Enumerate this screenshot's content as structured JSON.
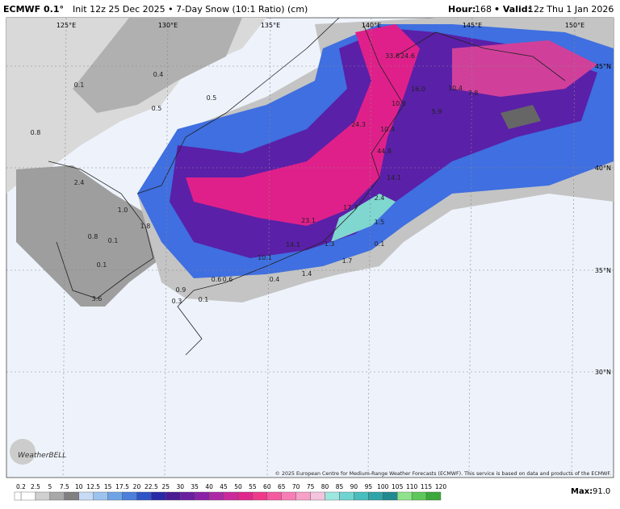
{
  "header": {
    "model": "ECMWF 0.1°",
    "init": "Init 12z 25 Dec 2025 • 7-Day Snow (10:1 Ratio) (cm)",
    "hour_label": "Hour:",
    "hour": "168",
    "valid_label": "• Valid:",
    "valid": "12z Thu 1 Jan 2026"
  },
  "map": {
    "lon_labels": [
      "125°E",
      "130°E",
      "135°E",
      "140°E",
      "145°E",
      "150°E"
    ],
    "lat_labels": [
      "45°N",
      "40°N",
      "35°N",
      "30°N"
    ],
    "value_labels": [
      "0.4",
      "0.1",
      "0.5",
      "0.5",
      "0.8",
      "33.8",
      "24.6",
      "16.0",
      "10.4",
      "7.8",
      "10.3",
      "5.9",
      "24.3",
      "10.4",
      "44.8",
      "14.1",
      "2.4",
      "2.4",
      "1.0",
      "17.7",
      "1.8",
      "23.1",
      "0.8",
      "0.1",
      "1.5",
      "0.1",
      "14.1",
      "1.3",
      "10.1",
      "1.7",
      "0.1",
      "1.4",
      "0.6",
      "0.6",
      "0.4",
      "0.9",
      "0.3",
      "0.1",
      "3.6"
    ],
    "copyright": "© 2025 European Centre for Medium-Range Weather Forecasts (ECMWF). This service is based on data and products of the ECMWF.",
    "logo": "WeatherBELL"
  },
  "colorbar": {
    "labels": [
      "0.2",
      "2.5",
      "5",
      "7.5",
      "10",
      "12.5",
      "15",
      "17.5",
      "20",
      "22.5",
      "25",
      "30",
      "35",
      "40",
      "45",
      "50",
      "55",
      "60",
      "65",
      "70",
      "75",
      "80",
      "85",
      "90",
      "95",
      "100",
      "105",
      "110",
      "115",
      "120"
    ],
    "max_label": "Max:",
    "max": "91.0"
  }
}
